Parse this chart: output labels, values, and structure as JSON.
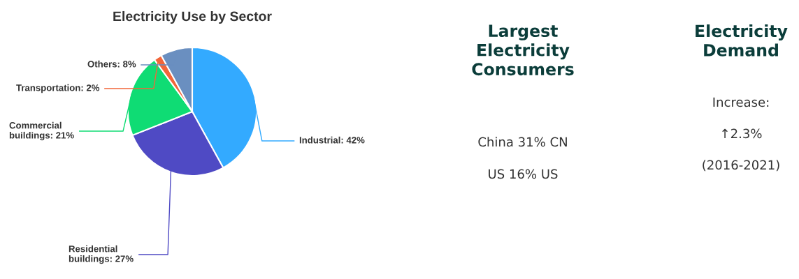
{
  "chart_data": [
    {
      "type": "pie",
      "title": "Electricity Use by Sector",
      "categories": [
        "Industrial",
        "Residential\nbuildings",
        "Commercial\nbuildings",
        "Transportation",
        "Others"
      ],
      "values": [
        42,
        27,
        21,
        2,
        8
      ],
      "colors": [
        "#33aaff",
        "#4f4ac4",
        "#0fdc74",
        "#f2663a",
        "#6a8fc0"
      ],
      "value_labels": [
        "42%",
        "27%",
        "21%",
        "2%",
        "8%"
      ]
    },
    {
      "type": "other",
      "title": "Largest Electricity Consumers",
      "annotations": [
        "China 31% CN",
        "US 16% US"
      ]
    },
    {
      "type": "other",
      "title": "Electricity Demand",
      "annotations": [
        "Increase:",
        "↑2.3%",
        "(2016-2021)"
      ]
    }
  ]
}
